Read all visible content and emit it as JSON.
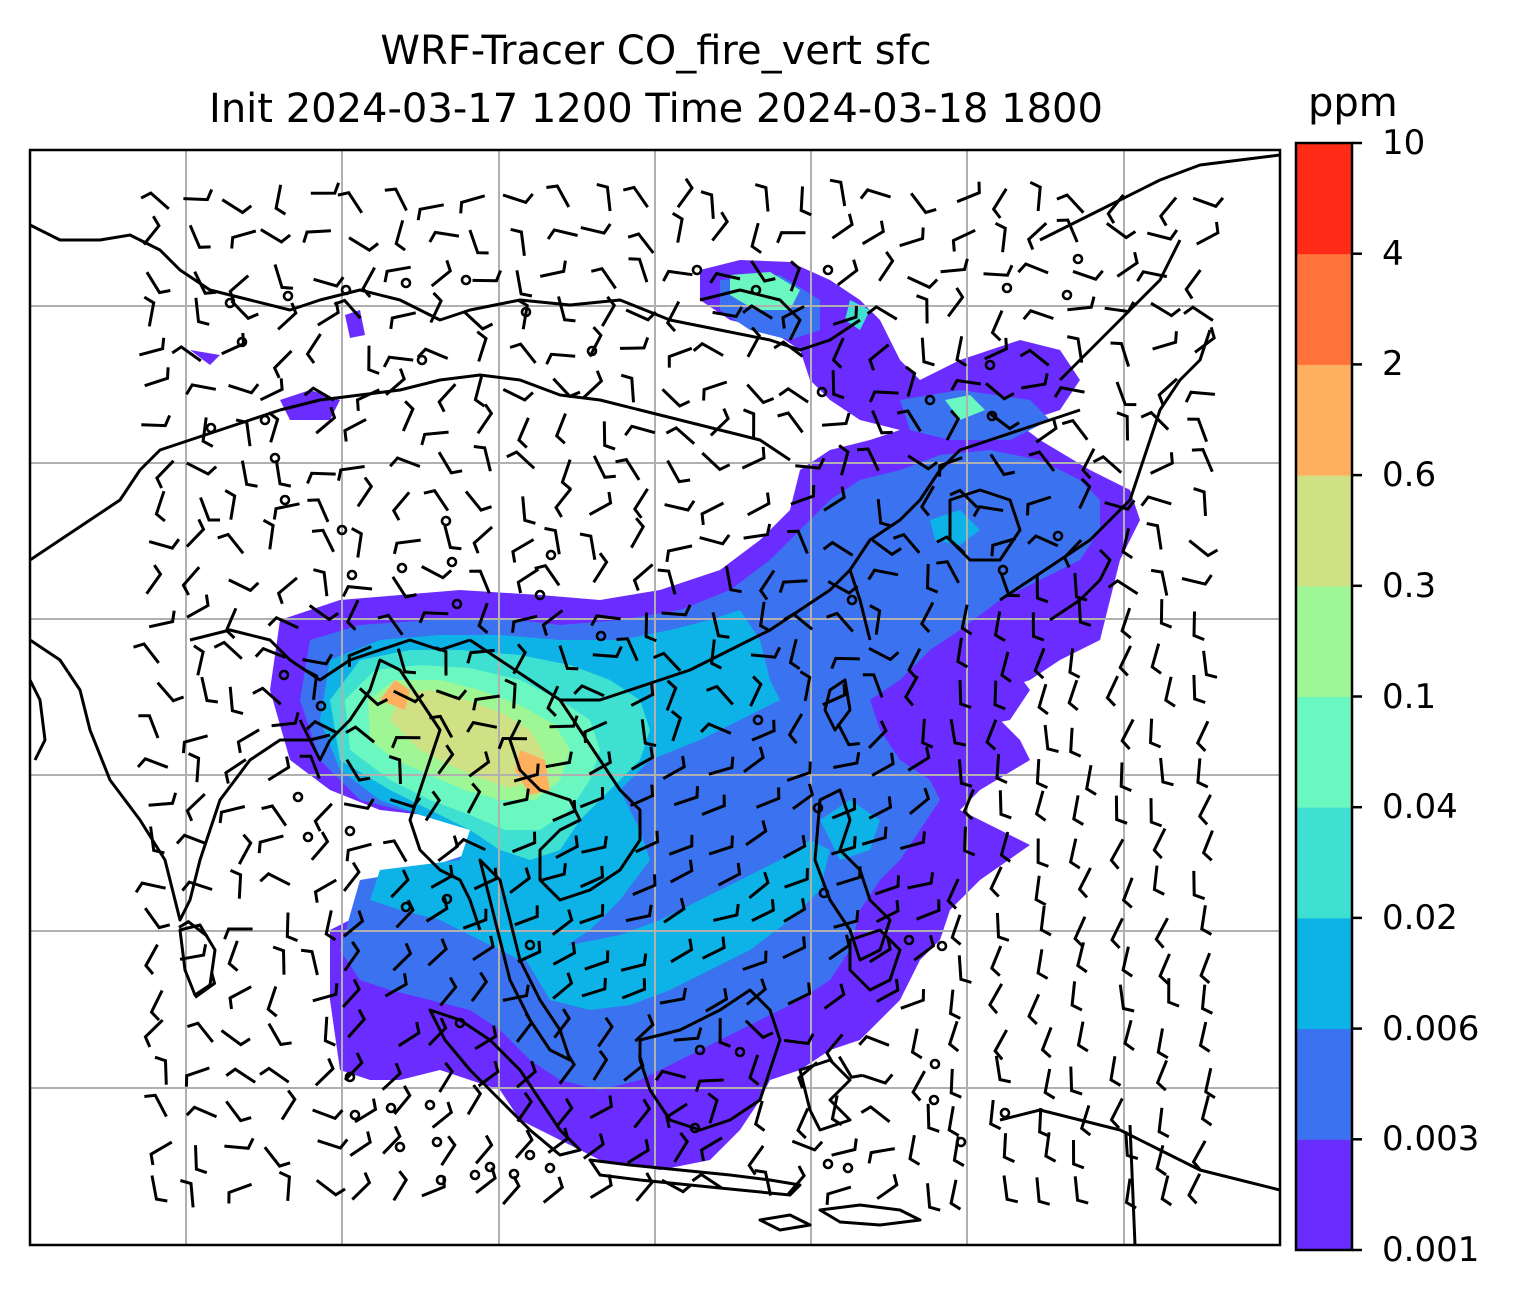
{
  "title": {
    "line1": "WRF-Tracer CO_fire_vert sfc",
    "line2": "Init 2024-03-17 1200 Time 2024-03-18 1800"
  },
  "colorbar": {
    "unit": "ppm",
    "levels": [
      "0.001",
      "0.003",
      "0.006",
      "0.02",
      "0.04",
      "0.1",
      "0.3",
      "0.6",
      "2",
      "4",
      "10"
    ],
    "colors": [
      "#6b2cff",
      "#3b72f0",
      "#0db2e6",
      "#3ee0d2",
      "#6af7c0",
      "#9ef794",
      "#d0e185",
      "#ffb05f",
      "#ff733a",
      "#ff2b16"
    ]
  },
  "map": {
    "region": "Southeast Asia / East Asia",
    "gridlines": true,
    "wind_barbs": true,
    "coastlines": true,
    "country_borders": true
  }
}
